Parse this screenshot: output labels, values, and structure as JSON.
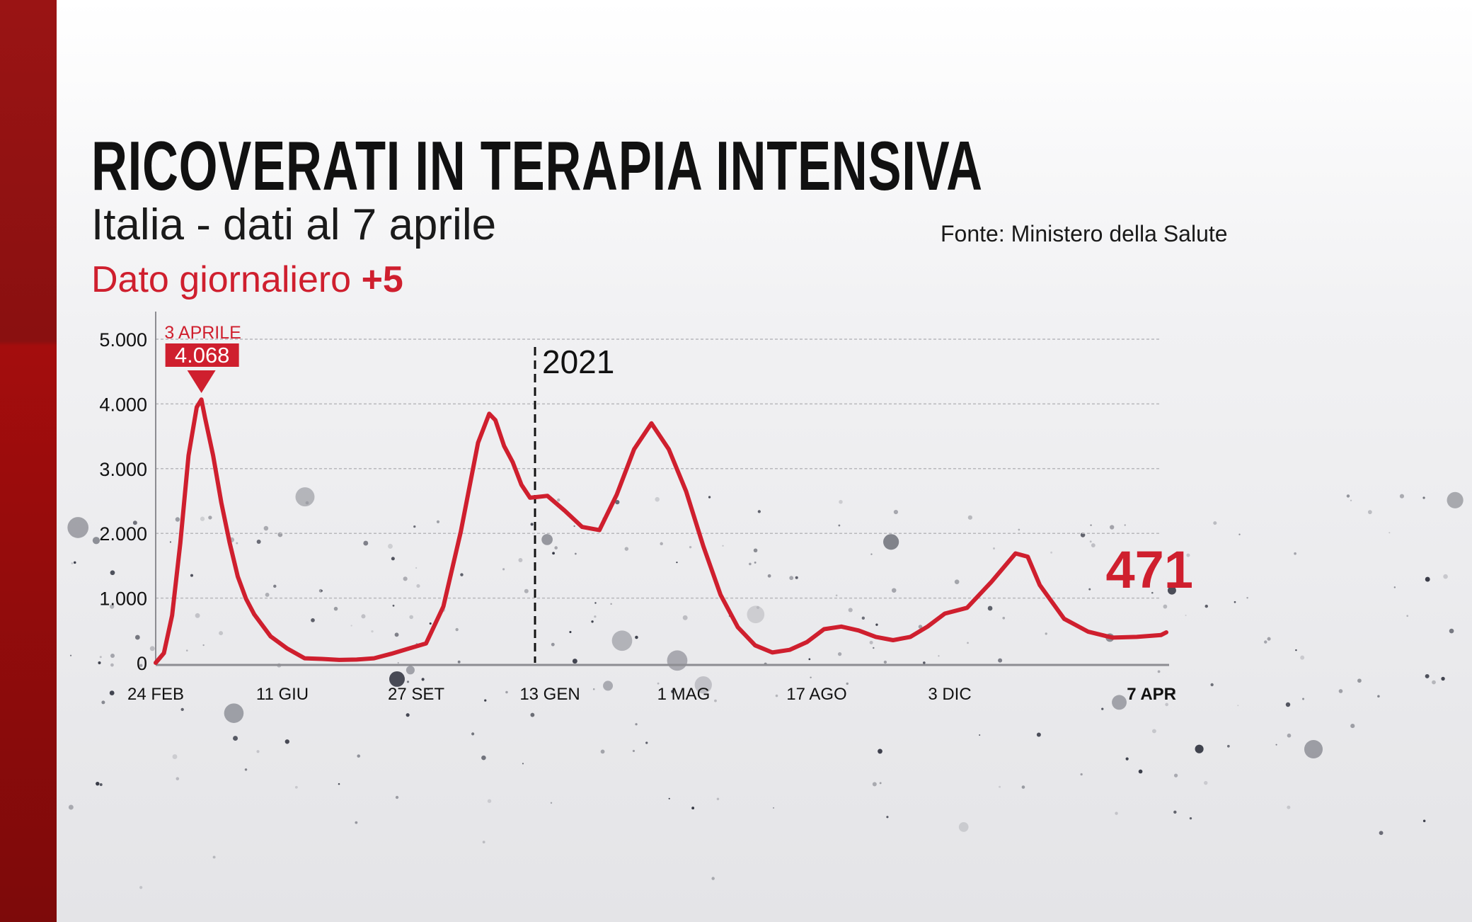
{
  "title": "RICOVERATI IN TERAPIA INTENSIVA",
  "subtitle": "Italia - dati al 7 aprile",
  "daily_label": "Dato giornaliero",
  "daily_value": "+5",
  "source": "Fonte: Ministero della Salute",
  "colors": {
    "accent": "#cf1f2e",
    "band": "#8a1010",
    "text": "#111111"
  },
  "chart_data": {
    "type": "line",
    "title": "RICOVERATI IN TERAPIA INTENSIVA",
    "ylim": [
      0,
      5000
    ],
    "grid": true,
    "y_ticks": [
      "0",
      "1.000",
      "2.000",
      "3.000",
      "4.000",
      "5.000"
    ],
    "y_tick_values": [
      0,
      1000,
      2000,
      3000,
      4000,
      5000
    ],
    "x_ticks": [
      {
        "label": "24 FEB",
        "date": "2020-02-24"
      },
      {
        "label": "11 GIU",
        "date": "2020-06-11"
      },
      {
        "label": "27 SET",
        "date": "2020-09-27"
      },
      {
        "label": "13 GEN",
        "date": "2021-01-13"
      },
      {
        "label": "1 MAG",
        "date": "2021-05-01"
      },
      {
        "label": "17 AGO",
        "date": "2021-08-17"
      },
      {
        "label": "3 DIC",
        "date": "2021-12-03"
      },
      {
        "label": "7 APR",
        "date": "2022-04-07"
      }
    ],
    "year_marker": {
      "label": "2021",
      "date": "2021-01-01"
    },
    "peak_annotation": {
      "date_label": "3 APRILE",
      "value_label": "4.068",
      "date": "2020-04-03",
      "value": 4068
    },
    "last_value_label": "471",
    "points": [
      [
        "2020-02-24",
        0
      ],
      [
        "2020-03-02",
        150
      ],
      [
        "2020-03-09",
        733
      ],
      [
        "2020-03-16",
        1850
      ],
      [
        "2020-03-23",
        3204
      ],
      [
        "2020-03-30",
        3950
      ],
      [
        "2020-04-03",
        4068
      ],
      [
        "2020-04-06",
        3792
      ],
      [
        "2020-04-13",
        3200
      ],
      [
        "2020-04-20",
        2470
      ],
      [
        "2020-04-27",
        1860
      ],
      [
        "2020-05-04",
        1333
      ],
      [
        "2020-05-11",
        990
      ],
      [
        "2020-05-18",
        749
      ],
      [
        "2020-06-01",
        408
      ],
      [
        "2020-06-15",
        220
      ],
      [
        "2020-06-29",
        70
      ],
      [
        "2020-07-13",
        60
      ],
      [
        "2020-07-27",
        45
      ],
      [
        "2020-08-10",
        50
      ],
      [
        "2020-08-24",
        70
      ],
      [
        "2020-09-07",
        140
      ],
      [
        "2020-09-21",
        220
      ],
      [
        "2020-10-05",
        300
      ],
      [
        "2020-10-19",
        870
      ],
      [
        "2020-11-02",
        2020
      ],
      [
        "2020-11-16",
        3400
      ],
      [
        "2020-11-25",
        3848
      ],
      [
        "2020-11-30",
        3750
      ],
      [
        "2020-12-07",
        3350
      ],
      [
        "2020-12-14",
        3100
      ],
      [
        "2020-12-21",
        2750
      ],
      [
        "2020-12-28",
        2550
      ],
      [
        "2021-01-11",
        2580
      ],
      [
        "2021-01-25",
        2350
      ],
      [
        "2021-02-08",
        2100
      ],
      [
        "2021-02-22",
        2050
      ],
      [
        "2021-03-08",
        2600
      ],
      [
        "2021-03-22",
        3300
      ],
      [
        "2021-04-05",
        3700
      ],
      [
        "2021-04-19",
        3300
      ],
      [
        "2021-05-03",
        2650
      ],
      [
        "2021-05-17",
        1800
      ],
      [
        "2021-05-31",
        1050
      ],
      [
        "2021-06-14",
        550
      ],
      [
        "2021-06-28",
        270
      ],
      [
        "2021-07-12",
        160
      ],
      [
        "2021-07-26",
        200
      ],
      [
        "2021-08-09",
        320
      ],
      [
        "2021-08-23",
        520
      ],
      [
        "2021-09-06",
        560
      ],
      [
        "2021-09-20",
        500
      ],
      [
        "2021-10-04",
        400
      ],
      [
        "2021-10-18",
        350
      ],
      [
        "2021-11-01",
        400
      ],
      [
        "2021-11-15",
        560
      ],
      [
        "2021-11-29",
        760
      ],
      [
        "2021-12-13",
        850
      ],
      [
        "2021-12-27",
        1250
      ],
      [
        "2022-01-10",
        1690
      ],
      [
        "2022-01-17",
        1640
      ],
      [
        "2022-01-24",
        1200
      ],
      [
        "2022-02-07",
        680
      ],
      [
        "2022-02-21",
        480
      ],
      [
        "2022-03-07",
        390
      ],
      [
        "2022-03-21",
        400
      ],
      [
        "2022-04-04",
        430
      ],
      [
        "2022-04-07",
        471
      ]
    ]
  }
}
